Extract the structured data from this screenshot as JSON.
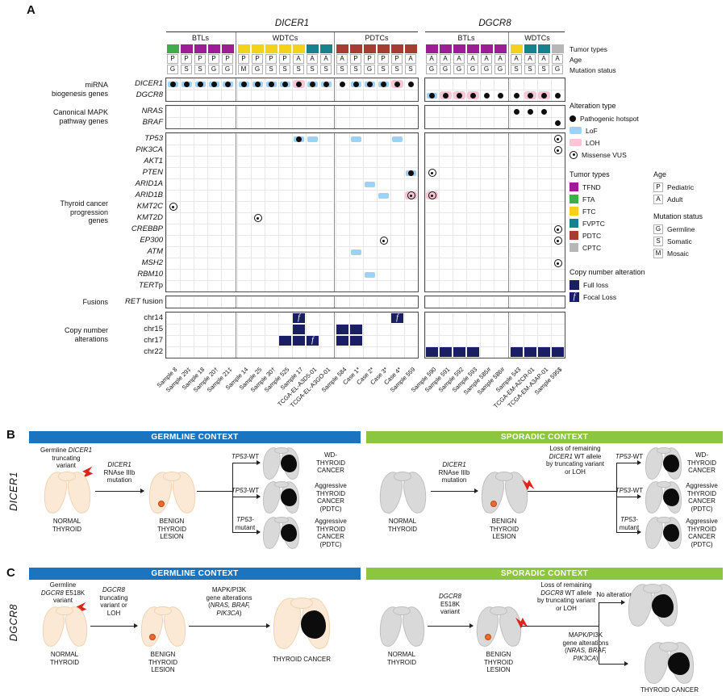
{
  "panels": {
    "a_label": "A",
    "b_label": "B",
    "c_label": "C"
  },
  "context_headers": {
    "germline": "GERMLINE CONTEXT",
    "sporadic": "SPORADIC CONTEXT"
  },
  "oncoprint": {
    "blocks": [
      {
        "gene": "DICER1",
        "subgroups": [
          {
            "label": "BTLs",
            "samples": [
              "Sample 8",
              "Sample 29‡",
              "Sample 18",
              "Sample 20†",
              "Sample 21‡"
            ]
          },
          {
            "label": "WDTCs",
            "samples": [
              "Sample 14",
              "Sample 25",
              "Sample 30†",
              "Sample 525",
              "Sample 17",
              "TCGA-EL-A3D5-01",
              "TCGA-EL-A3GO-01"
            ]
          },
          {
            "label": "PDTCs",
            "samples": [
              "Sample 584",
              "Case 1*",
              "Case 2*",
              "Case 3*",
              "Case 4*",
              "Sample 559"
            ]
          }
        ]
      },
      {
        "gene": "DGCR8",
        "subgroups": [
          {
            "label": "BTLs",
            "samples": [
              "Sample 590",
              "Sample 591",
              "Sample 592",
              "Sample 593",
              "Sample 585#",
              "Sample 586#"
            ]
          },
          {
            "label": "WDTCs",
            "samples": [
              "Sample 543",
              "TCGA-EM-A2CR-01",
              "TCGA-EM-A3AP-01",
              "Sample 595$"
            ]
          }
        ]
      }
    ],
    "annotations": {
      "tumor": [
        "FTA",
        "TFND",
        "TFND",
        "TFND",
        "TFND",
        "FTC",
        "FTC",
        "FTC",
        "FTC",
        "FTC",
        "FVPTC",
        "FVPTC",
        "PDTC",
        "PDTC",
        "PDTC",
        "PDTC",
        "PDTC",
        "PDTC",
        "TFND",
        "TFND",
        "TFND",
        "TFND",
        "TFND",
        "TFND",
        "FTC",
        "FVPTC",
        "FVPTC",
        "CPTC"
      ],
      "age": [
        "P",
        "P",
        "P",
        "P",
        "P",
        "P",
        "P",
        "P",
        "P",
        "A",
        "A",
        "A",
        "A",
        "P",
        "P",
        "P",
        "P",
        "A",
        "A",
        "A",
        "A",
        "A",
        "A",
        "A",
        "A",
        "A",
        "A",
        "A"
      ],
      "status": [
        "G",
        "S",
        "S",
        "G",
        "G",
        "M",
        "G",
        "S",
        "S",
        "S",
        "S",
        "S",
        "S",
        "S",
        "G",
        "S",
        "S",
        "S",
        "G",
        "G",
        "G",
        "G",
        "G",
        "G",
        "S",
        "S",
        "S",
        "G"
      ]
    },
    "tumor_colors": {
      "TFND": "#9c1d95",
      "FTA": "#3fae49",
      "FTC": "#f4d21b",
      "FVPTC": "#15828e",
      "PDTC": "#a63d33",
      "CPTC": "#b7b7b7"
    },
    "mark_colors": {
      "lof": "#9dd2f4",
      "loh": "#f9c6d6",
      "cna": "#1a1f63",
      "hotspot": "#0e0e0e"
    },
    "row_groups": [
      {
        "label": "miRNA<br>biogenesis genes",
        "rows": [
          {
            "key": "DICER1",
            "html": "<i>DICER1</i>"
          },
          {
            "key": "DGCR8",
            "html": "<i>DGCR8</i>"
          }
        ]
      },
      {
        "label": "Canonical MAPK<br>pathway genes",
        "rows": [
          {
            "key": "NRAS",
            "html": "<i>NRAS</i>"
          },
          {
            "key": "BRAF",
            "html": "<i>BRAF</i>"
          }
        ]
      },
      {
        "label": "Thyroid cancer<br>progression<br>genes",
        "rows": [
          {
            "key": "TP53",
            "html": "<i>TP53</i>"
          },
          {
            "key": "PIK3CA",
            "html": "<i>PIK3CA</i>"
          },
          {
            "key": "AKT1",
            "html": "<i>AKT1</i>"
          },
          {
            "key": "PTEN",
            "html": "<i>PTEN</i>"
          },
          {
            "key": "ARID1A",
            "html": "<i>ARID1A</i>"
          },
          {
            "key": "ARID1B",
            "html": "<i>ARID1B</i>"
          },
          {
            "key": "KMT2C",
            "html": "<i>KMT2C</i>"
          },
          {
            "key": "KMT2D",
            "html": "<i>KMT2D</i>"
          },
          {
            "key": "CREBBP",
            "html": "<i>CREBBP</i>"
          },
          {
            "key": "EP300",
            "html": "<i>EP300</i>"
          },
          {
            "key": "ATM",
            "html": "<i>ATM</i>"
          },
          {
            "key": "MSH2",
            "html": "<i>MSH2</i>"
          },
          {
            "key": "RBM10",
            "html": "<i>RBM10</i>"
          },
          {
            "key": "TERTp",
            "html": "<i>TERT</i>p"
          }
        ]
      },
      {
        "label": "Fusions",
        "rows": [
          {
            "key": "RETfusion",
            "html": "<i>RET</i> fusion"
          }
        ]
      },
      {
        "label": "Copy number<br>alterations",
        "rows": [
          {
            "key": "chr14",
            "html": "chr14"
          },
          {
            "key": "chr15",
            "html": "chr15"
          },
          {
            "key": "chr17",
            "html": "chr17"
          },
          {
            "key": "chr22",
            "html": "chr22"
          }
        ]
      }
    ],
    "cells": [
      [
        "DICER1",
        0,
        "lof hs"
      ],
      [
        "DICER1",
        1,
        "lof hs"
      ],
      [
        "DICER1",
        2,
        "lof hs"
      ],
      [
        "DICER1",
        3,
        "lof hs"
      ],
      [
        "DICER1",
        4,
        "lof hs"
      ],
      [
        "DICER1",
        5,
        "lof hs"
      ],
      [
        "DICER1",
        6,
        "lof hs"
      ],
      [
        "DICER1",
        7,
        "lof hs"
      ],
      [
        "DICER1",
        8,
        "lof hs"
      ],
      [
        "DICER1",
        9,
        "loh hs"
      ],
      [
        "DICER1",
        10,
        "lof hs"
      ],
      [
        "DICER1",
        11,
        "lof hs"
      ],
      [
        "DICER1",
        12,
        "hs"
      ],
      [
        "DICER1",
        13,
        "lof hs"
      ],
      [
        "DICER1",
        14,
        "lof hs"
      ],
      [
        "DICER1",
        15,
        "lof hs"
      ],
      [
        "DICER1",
        16,
        "loh hs"
      ],
      [
        "DICER1",
        17,
        "hs"
      ],
      [
        "DGCR8",
        18,
        "lof hs"
      ],
      [
        "DGCR8",
        19,
        "loh hs"
      ],
      [
        "DGCR8",
        20,
        "loh hs"
      ],
      [
        "DGCR8",
        21,
        "loh hs"
      ],
      [
        "DGCR8",
        22,
        "hs"
      ],
      [
        "DGCR8",
        23,
        "hs"
      ],
      [
        "DGCR8",
        24,
        "hs"
      ],
      [
        "DGCR8",
        25,
        "loh hs"
      ],
      [
        "DGCR8",
        26,
        "loh hs"
      ],
      [
        "DGCR8",
        27,
        "hs"
      ],
      [
        "NRAS",
        24,
        "hs"
      ],
      [
        "NRAS",
        25,
        "hs"
      ],
      [
        "NRAS",
        26,
        "hs"
      ],
      [
        "BRAF",
        27,
        "hs"
      ],
      [
        "TP53",
        9,
        "lof hs"
      ],
      [
        "TP53",
        10,
        "lof"
      ],
      [
        "TP53",
        13,
        "lof"
      ],
      [
        "TP53",
        16,
        "lof"
      ],
      [
        "TP53",
        27,
        "vus"
      ],
      [
        "PIK3CA",
        27,
        "vus"
      ],
      [
        "PTEN",
        17,
        "lof hs"
      ],
      [
        "PTEN",
        18,
        "vus"
      ],
      [
        "ARID1A",
        14,
        "lof"
      ],
      [
        "ARID1B",
        15,
        "lof"
      ],
      [
        "ARID1B",
        17,
        "loh vus"
      ],
      [
        "ARID1B",
        18,
        "loh vus"
      ],
      [
        "KMT2C",
        0,
        "vus"
      ],
      [
        "KMT2D",
        6,
        "vus"
      ],
      [
        "CREBBP",
        27,
        "vus"
      ],
      [
        "EP300",
        15,
        "vus"
      ],
      [
        "EP300",
        27,
        "vus"
      ],
      [
        "ATM",
        13,
        "lof"
      ],
      [
        "MSH2",
        27,
        "vus"
      ],
      [
        "RBM10",
        14,
        "lof"
      ],
      [
        "chr14",
        9,
        "focal"
      ],
      [
        "chr14",
        16,
        "focal"
      ],
      [
        "chr15",
        9,
        "full"
      ],
      [
        "chr15",
        12,
        "full"
      ],
      [
        "chr15",
        13,
        "full"
      ],
      [
        "chr17",
        8,
        "full"
      ],
      [
        "chr17",
        9,
        "full"
      ],
      [
        "chr17",
        10,
        "focal"
      ],
      [
        "chr17",
        12,
        "full"
      ],
      [
        "chr17",
        13,
        "full"
      ],
      [
        "chr22",
        18,
        "full"
      ],
      [
        "chr22",
        19,
        "full"
      ],
      [
        "chr22",
        20,
        "full"
      ],
      [
        "chr22",
        21,
        "full"
      ],
      [
        "chr22",
        24,
        "full"
      ],
      [
        "chr22",
        25,
        "full"
      ],
      [
        "chr22",
        26,
        "full"
      ],
      [
        "chr22",
        27,
        "full"
      ]
    ]
  },
  "legend": {
    "annotation_labels": [
      "Tumor types",
      "Age",
      "Mutation status"
    ],
    "alteration": {
      "title": "Alteration type",
      "items": [
        "Pathogenic hotspot",
        "LoF",
        "LOH",
        "Missense VUS"
      ]
    },
    "tumor_types_title": "Tumor types",
    "tumor_types": [
      "TFND",
      "FTA",
      "FTC",
      "FVPTC",
      "PDTC",
      "CPTC"
    ],
    "age": {
      "title": "Age",
      "items": [
        [
          "P",
          "Pediatric"
        ],
        [
          "A",
          "Adult"
        ]
      ]
    },
    "mutation_status": {
      "title": "Mutation status",
      "items": [
        [
          "G",
          "Germline"
        ],
        [
          "S",
          "Somatic"
        ],
        [
          "M",
          "Mosaic"
        ]
      ]
    },
    "cna": {
      "title": "Copy number alteration",
      "items": [
        [
          "full",
          "Full loss"
        ],
        [
          "focal",
          "Focal Loss"
        ]
      ]
    }
  },
  "panelB": {
    "gene": "DICER1",
    "germline": {
      "trigger": "Germline <i>DICER1</i><br>truncating<br>variant",
      "stage1": "NORMAL<br>THYROID",
      "arrow1": "<i>DICER1</i><br>RNAse IIIb<br>mutation",
      "stage2": "BENIGN<br>THYROID<br>LESION",
      "branches": [
        {
          "label": "<i>TP53</i>-WT",
          "outcome": "WD-<br>THYROID<br>CANCER"
        },
        {
          "label": "<i>TP53</i>-WT",
          "outcome": "Aggressive<br>THYROID<br>CANCER<br>(PDTC)"
        },
        {
          "label": "<i>TP53</i>-mutant",
          "outcome": "Aggressive<br>THYROID<br>CANCER<br>(PDTC)"
        }
      ]
    },
    "sporadic": {
      "stage1": "NORMAL<br>THYROID",
      "arrow1": "<i>DICER1</i><br>RNAse IIIb<br>mutation",
      "stage2": "BENIGN<br>THYROID<br>LESION",
      "trigger": "Loss of remaining<br><i>DICER1</i> WT allele<br>by truncating variant<br>or LOH",
      "branches": [
        {
          "label": "<i>TP53</i>-WT",
          "outcome": "WD-<br>THYROID<br>CANCER"
        },
        {
          "label": "<i>TP53</i>-WT",
          "outcome": "Aggressive<br>THYROID<br>CANCER<br>(PDTC)"
        },
        {
          "label": "<i>TP53</i>-mutant",
          "outcome": "Aggressive<br>THYROID<br>CANCER<br>(PDTC)"
        }
      ]
    }
  },
  "panelC": {
    "gene": "DGCR8",
    "germline": {
      "trigger": "Germline<br><i>DGCR8</i> E518K<br>variant",
      "stage1": "NORMAL<br>THYROID",
      "arrow1": "<i>DGCR8</i><br>truncating<br>variant or<br>LOH",
      "stage2": "BENIGN<br>THYROID<br>LESION",
      "arrow2": "MAPK/PI3K<br>gene alterations<br>(<i>NRAS, BRAF,</i><br><i>PIK3CA</i>)",
      "outcome": "THYROID CANCER"
    },
    "sporadic": {
      "stage1": "NORMAL<br>THYROID",
      "arrow1": "<i>DGCR8</i><br>E518K<br>variant",
      "stage2": "BENIGN<br>THYROID<br>LESION",
      "trigger": "Loss of remaining<br><i>DGCR8</i> WT allele<br>by truncating variant<br>or LOH",
      "branch_top": "No alteration",
      "branch_bottom": "MAPK/PI3K<br>gene alterations<br>(<i>NRAS, BRAF,</i><br><i>PIK3CA</i>)",
      "outcome": "THYROID CANCER"
    }
  }
}
